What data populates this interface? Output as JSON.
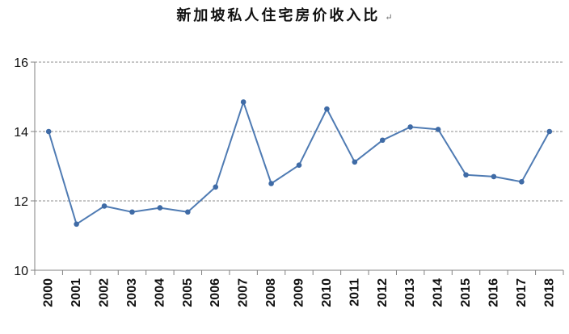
{
  "chart_data": {
    "type": "line",
    "title": "新加坡私人住宅房价收入比",
    "title_mark": "↵",
    "xlabel": "",
    "ylabel": "",
    "categories": [
      "2000",
      "2001",
      "2002",
      "2003",
      "2004",
      "2005",
      "2006",
      "2007",
      "2008",
      "2009",
      "2010",
      "2011",
      "2012",
      "2013",
      "2014",
      "2015",
      "2016",
      "2017",
      "2018"
    ],
    "series": [
      {
        "values": [
          14.0,
          11.33,
          11.85,
          11.68,
          11.8,
          11.68,
          12.4,
          14.85,
          12.5,
          13.03,
          14.65,
          13.12,
          13.75,
          14.13,
          14.06,
          12.75,
          12.7,
          12.55,
          14.0
        ]
      }
    ],
    "ylim": [
      10,
      16
    ],
    "yticks": [
      "10",
      "12",
      "14",
      "16"
    ],
    "grid": "horizontal-dashed",
    "legend": "none",
    "colors": {
      "line": "#4f7bb3",
      "marker": "#3f6ba6",
      "grid": "#8c8c8c",
      "axis": "#808080"
    }
  }
}
